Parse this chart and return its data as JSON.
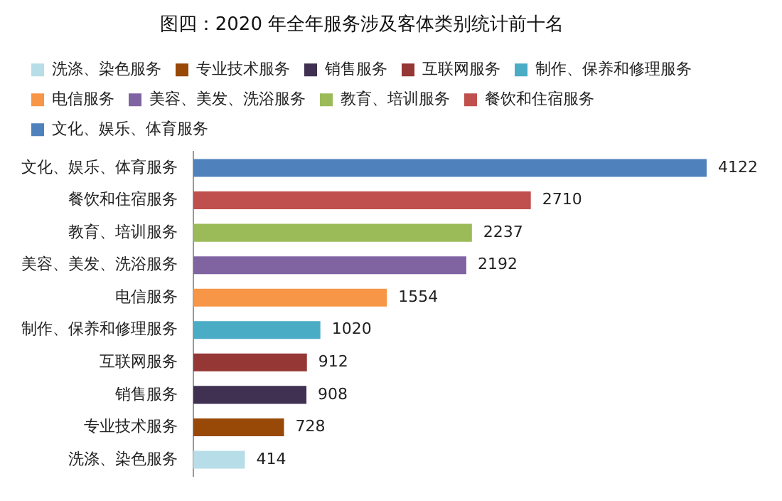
{
  "chart_data": {
    "type": "bar",
    "orientation": "horizontal",
    "stacked": true,
    "title": "图四：2020 年全年服务涉及客体类别统计前十名",
    "categories": [
      "文化、娱乐、体育服务",
      "餐饮和住宿服务",
      "教育、培训服务",
      "美容、美发、洗浴服务",
      "电信服务",
      "制作、保养和修理服务",
      "互联网服务",
      "销售服务",
      "专业技术服务",
      "洗涤、染色服务"
    ],
    "series": [
      {
        "name": "文化、娱乐、体育服务",
        "color": "#4f81bd",
        "values": [
          4122,
          null,
          null,
          null,
          null,
          null,
          null,
          null,
          null,
          null
        ]
      },
      {
        "name": "餐饮和住宿服务",
        "color": "#c0504d",
        "values": [
          null,
          2710,
          null,
          null,
          null,
          null,
          null,
          null,
          null,
          null
        ]
      },
      {
        "name": "教育、培训服务",
        "color": "#9bbb59",
        "values": [
          null,
          null,
          2237,
          null,
          null,
          null,
          null,
          null,
          null,
          null
        ]
      },
      {
        "name": "美容、美发、洗浴服务",
        "color": "#8064a2",
        "values": [
          null,
          null,
          null,
          2192,
          null,
          null,
          null,
          null,
          null,
          null
        ]
      },
      {
        "name": "电信服务",
        "color": "#f79646",
        "values": [
          null,
          null,
          null,
          null,
          1554,
          null,
          null,
          null,
          null,
          null
        ]
      },
      {
        "name": "制作、保养和修理服务",
        "color": "#4bacc6",
        "values": [
          null,
          null,
          null,
          null,
          null,
          1020,
          null,
          null,
          null,
          null
        ]
      },
      {
        "name": "互联网服务",
        "color": "#953735",
        "values": [
          null,
          null,
          null,
          null,
          null,
          null,
          912,
          null,
          null,
          null
        ]
      },
      {
        "name": "销售服务",
        "color": "#403152",
        "values": [
          null,
          null,
          null,
          null,
          null,
          null,
          null,
          908,
          null,
          null
        ]
      },
      {
        "name": "专业技术服务",
        "color": "#984807",
        "values": [
          null,
          null,
          null,
          null,
          null,
          null,
          null,
          null,
          728,
          null
        ]
      },
      {
        "name": "洗涤、染色服务",
        "color": "#b7dee8",
        "values": [
          null,
          null,
          null,
          null,
          null,
          null,
          null,
          null,
          null,
          414
        ]
      }
    ],
    "data_labels": true,
    "legend": "top"
  }
}
